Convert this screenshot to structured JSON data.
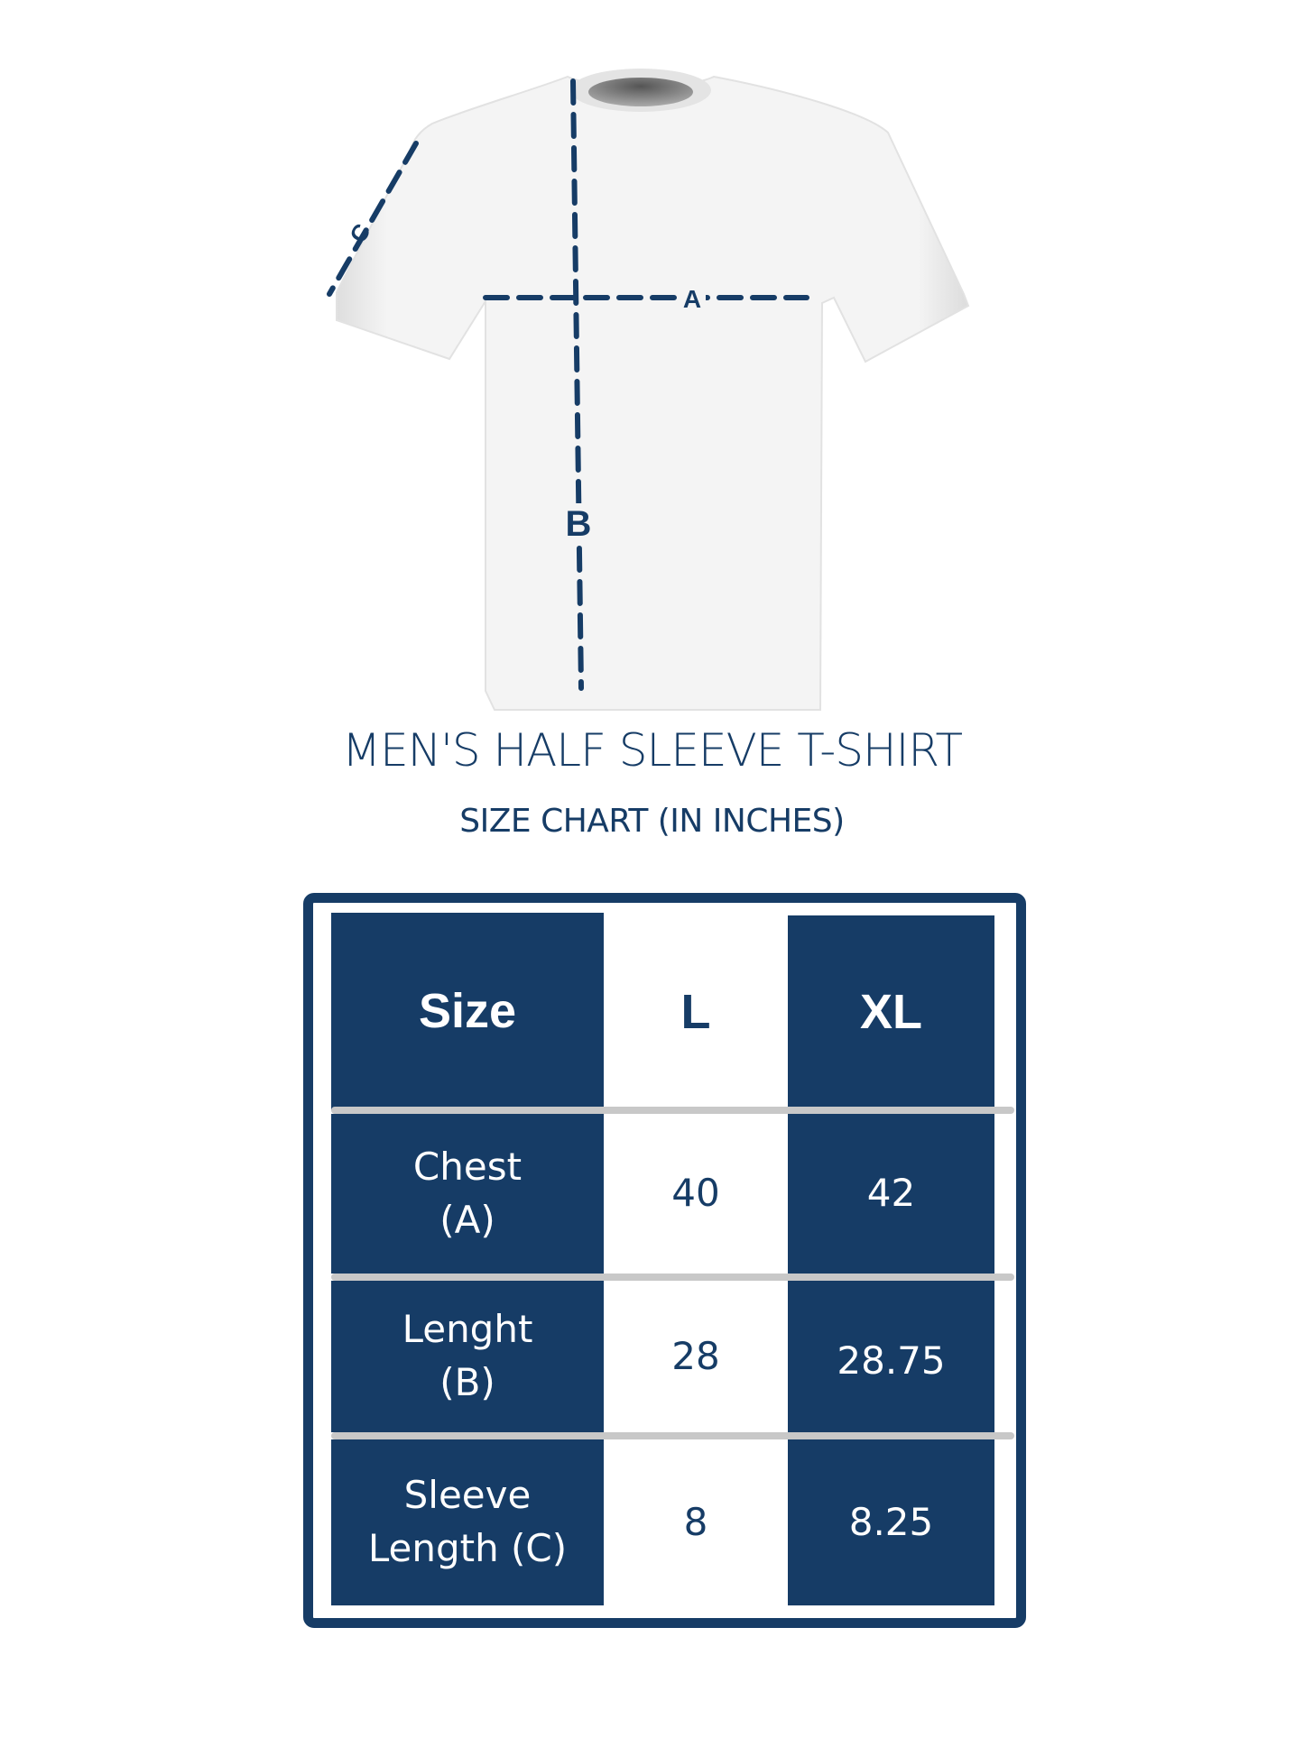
{
  "diagram": {
    "labels": {
      "chest": "A",
      "length": "B",
      "sleeve": "C"
    },
    "colors": {
      "accent": "#163c66",
      "shirt": "#f3f3f3",
      "separator": "#c8c8c8"
    }
  },
  "title": "MEN'S HALF SLEEVE T-SHIRT",
  "subtitle": "SIZE CHART (IN INCHES)",
  "table": {
    "headers": [
      "Size",
      "L",
      "XL"
    ],
    "rows": [
      {
        "label_line1": "Chest",
        "label_line2": "(A)",
        "L": "40",
        "XL": "42"
      },
      {
        "label_line1": "Lenght",
        "label_line2": "(B)",
        "L": "28",
        "XL": "28.75"
      },
      {
        "label_line1": "Sleeve",
        "label_line2": "Length (C)",
        "L": "8",
        "XL": "8.25"
      }
    ]
  }
}
